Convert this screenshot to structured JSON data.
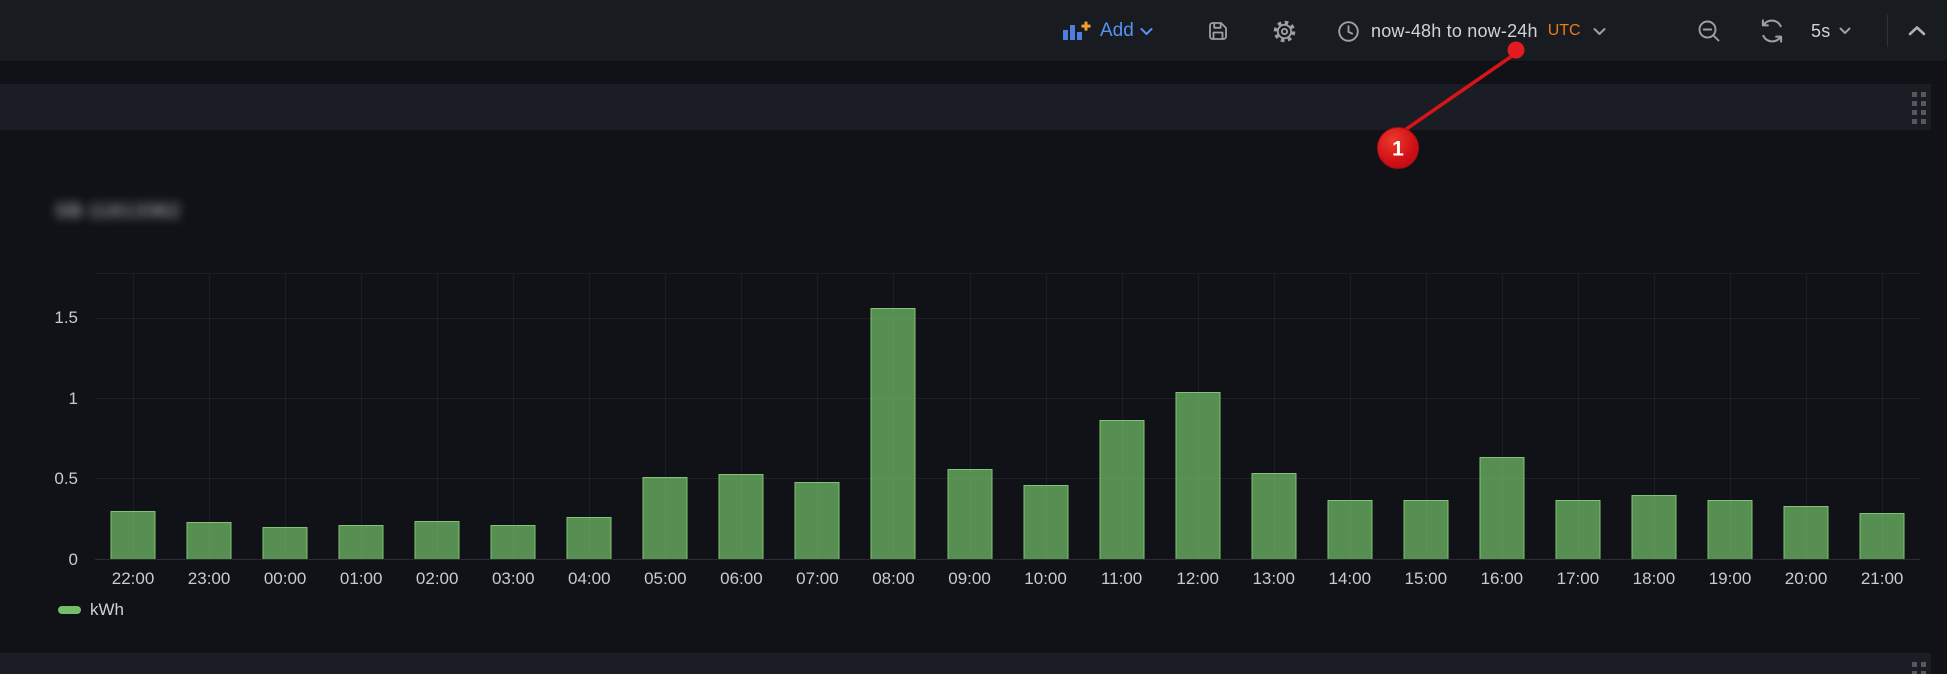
{
  "navbar": {
    "add": {
      "label": "Add"
    },
    "time_range": {
      "label": "now-48h to now-24h",
      "timezone": "UTC"
    },
    "refresh_interval": "5s",
    "icons": {
      "add": "bar-chart-plus",
      "save": "floppy-disk",
      "settings": "gear",
      "time_range": "clock",
      "zoom_out": "magnifier-minus",
      "refresh": "circular-arrows",
      "interval_caret": "chevron-down",
      "collapse": "chevron-up"
    }
  },
  "panel": {
    "title_blurred": "SB-11613362",
    "legend": [
      {
        "label": "kWh",
        "color": "#73bf69"
      }
    ]
  },
  "annotation": {
    "label": "1",
    "color": "#d8141b"
  },
  "colors": {
    "page_bg": "#111217",
    "navbar_bg": "#181b1f",
    "strip_bg": "#1a1d23",
    "accent_blue": "#5794f2",
    "utc_orange": "#eb7b19",
    "series_green": "#73bf69",
    "annotation_red": "#d8141b",
    "text": "#ccccdc"
  },
  "chart_data": {
    "type": "bar",
    "title": "",
    "xlabel": "",
    "ylabel": "",
    "categories": [
      "22:00",
      "23:00",
      "00:00",
      "01:00",
      "02:00",
      "03:00",
      "04:00",
      "05:00",
      "06:00",
      "07:00",
      "08:00",
      "09:00",
      "10:00",
      "11:00",
      "12:00",
      "13:00",
      "14:00",
      "15:00",
      "16:00",
      "17:00",
      "18:00",
      "19:00",
      "20:00",
      "21:00"
    ],
    "series": [
      {
        "name": "kWh",
        "values": [
          0.3,
          0.23,
          0.2,
          0.21,
          0.24,
          0.21,
          0.26,
          0.51,
          0.53,
          0.48,
          1.57,
          0.56,
          0.46,
          0.87,
          1.04,
          0.54,
          0.37,
          0.37,
          0.64,
          0.37,
          0.4,
          0.37,
          0.33,
          0.29
        ]
      }
    ],
    "yticks": [
      0,
      0.5,
      1,
      1.5
    ],
    "ylim": [
      0,
      1.78
    ],
    "grid": true,
    "legend_position": "bottom-left",
    "bar_color": "#73bf69"
  }
}
